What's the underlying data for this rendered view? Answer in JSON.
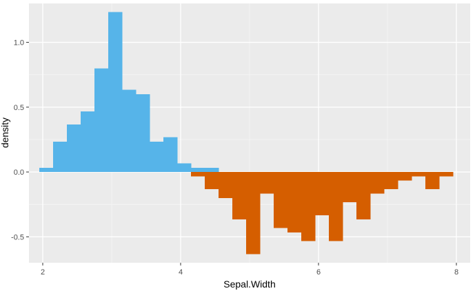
{
  "chart_data": {
    "type": "bar",
    "xlabel": "Sepal.Width",
    "ylabel": "density",
    "xlim": [
      1.8,
      8.2
    ],
    "ylim": [
      -0.7,
      1.3
    ],
    "x_ticks": [
      2,
      4,
      6,
      8
    ],
    "x_tick_labels": [
      "2",
      "4",
      "6",
      "8"
    ],
    "y_ticks": [
      -0.5,
      0.0,
      0.5,
      1.0
    ],
    "y_tick_labels": [
      "-0.5",
      "0.0",
      "0.5",
      "1.0"
    ],
    "grid": true,
    "bin_width": 0.2,
    "series": [
      {
        "color": "#56b4e9",
        "bins": [
          {
            "x0": 1.95,
            "x1": 2.15,
            "y": 0.033
          },
          {
            "x0": 2.15,
            "x1": 2.35,
            "y": 0.233
          },
          {
            "x0": 2.35,
            "x1": 2.55,
            "y": 0.367
          },
          {
            "x0": 2.55,
            "x1": 2.75,
            "y": 0.467
          },
          {
            "x0": 2.75,
            "x1": 2.95,
            "y": 0.8
          },
          {
            "x0": 2.95,
            "x1": 3.15,
            "y": 1.233
          },
          {
            "x0": 3.15,
            "x1": 3.35,
            "y": 0.633
          },
          {
            "x0": 3.35,
            "x1": 3.55,
            "y": 0.6
          },
          {
            "x0": 3.55,
            "x1": 3.75,
            "y": 0.233
          },
          {
            "x0": 3.75,
            "x1": 3.95,
            "y": 0.267
          },
          {
            "x0": 3.95,
            "x1": 4.15,
            "y": 0.067
          },
          {
            "x0": 4.15,
            "x1": 4.35,
            "y": 0.033
          },
          {
            "x0": 4.35,
            "x1": 4.55,
            "y": 0.033
          }
        ]
      },
      {
        "color": "#d55e00",
        "bins": [
          {
            "x0": 4.15,
            "x1": 4.35,
            "y": -0.033
          },
          {
            "x0": 4.35,
            "x1": 4.55,
            "y": -0.133
          },
          {
            "x0": 4.55,
            "x1": 4.75,
            "y": -0.2
          },
          {
            "x0": 4.75,
            "x1": 4.95,
            "y": -0.367
          },
          {
            "x0": 4.95,
            "x1": 5.15,
            "y": -0.633
          },
          {
            "x0": 5.15,
            "x1": 5.35,
            "y": -0.167
          },
          {
            "x0": 5.35,
            "x1": 5.55,
            "y": -0.433
          },
          {
            "x0": 5.55,
            "x1": 5.75,
            "y": -0.467
          },
          {
            "x0": 5.75,
            "x1": 5.95,
            "y": -0.533
          },
          {
            "x0": 5.95,
            "x1": 6.15,
            "y": -0.333
          },
          {
            "x0": 6.15,
            "x1": 6.35,
            "y": -0.533
          },
          {
            "x0": 6.35,
            "x1": 6.55,
            "y": -0.233
          },
          {
            "x0": 6.55,
            "x1": 6.75,
            "y": -0.367
          },
          {
            "x0": 6.75,
            "x1": 6.95,
            "y": -0.167
          },
          {
            "x0": 6.95,
            "x1": 7.15,
            "y": -0.133
          },
          {
            "x0": 7.15,
            "x1": 7.35,
            "y": -0.067
          },
          {
            "x0": 7.35,
            "x1": 7.55,
            "y": -0.033
          },
          {
            "x0": 7.55,
            "x1": 7.75,
            "y": -0.133
          },
          {
            "x0": 7.75,
            "x1": 7.95,
            "y": -0.033
          }
        ]
      }
    ]
  },
  "colors": {
    "panel_background": "#ebebeb",
    "grid_major": "#ffffff",
    "grid_minor": "#f5f5f5"
  }
}
